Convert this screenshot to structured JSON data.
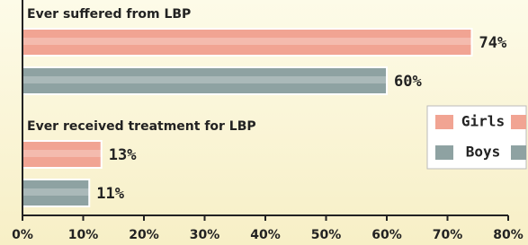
{
  "chart_data": {
    "type": "bar",
    "orientation": "horizontal",
    "categories": [
      "Ever suffered from LBP",
      "Ever received treatment for LBP"
    ],
    "series": [
      {
        "name": "Girls",
        "color": "#f1a493",
        "values": [
          74,
          13
        ],
        "value_labels": [
          "74%",
          "13%"
        ]
      },
      {
        "name": "Boys",
        "color": "#8ea2a2",
        "values": [
          60,
          11
        ],
        "value_labels": [
          "60%",
          "11%"
        ]
      }
    ],
    "xlim": [
      0,
      80
    ],
    "xticks": [
      {
        "value": 0,
        "label": "0%"
      },
      {
        "value": 10,
        "label": "10%"
      },
      {
        "value": 20,
        "label": "20%"
      },
      {
        "value": 30,
        "label": "30%"
      },
      {
        "value": 40,
        "label": "40%"
      },
      {
        "value": 50,
        "label": "50%"
      },
      {
        "value": 60,
        "label": "60%"
      },
      {
        "value": 70,
        "label": "70%"
      },
      {
        "value": 80,
        "label": "80%"
      }
    ],
    "legend": "right"
  }
}
